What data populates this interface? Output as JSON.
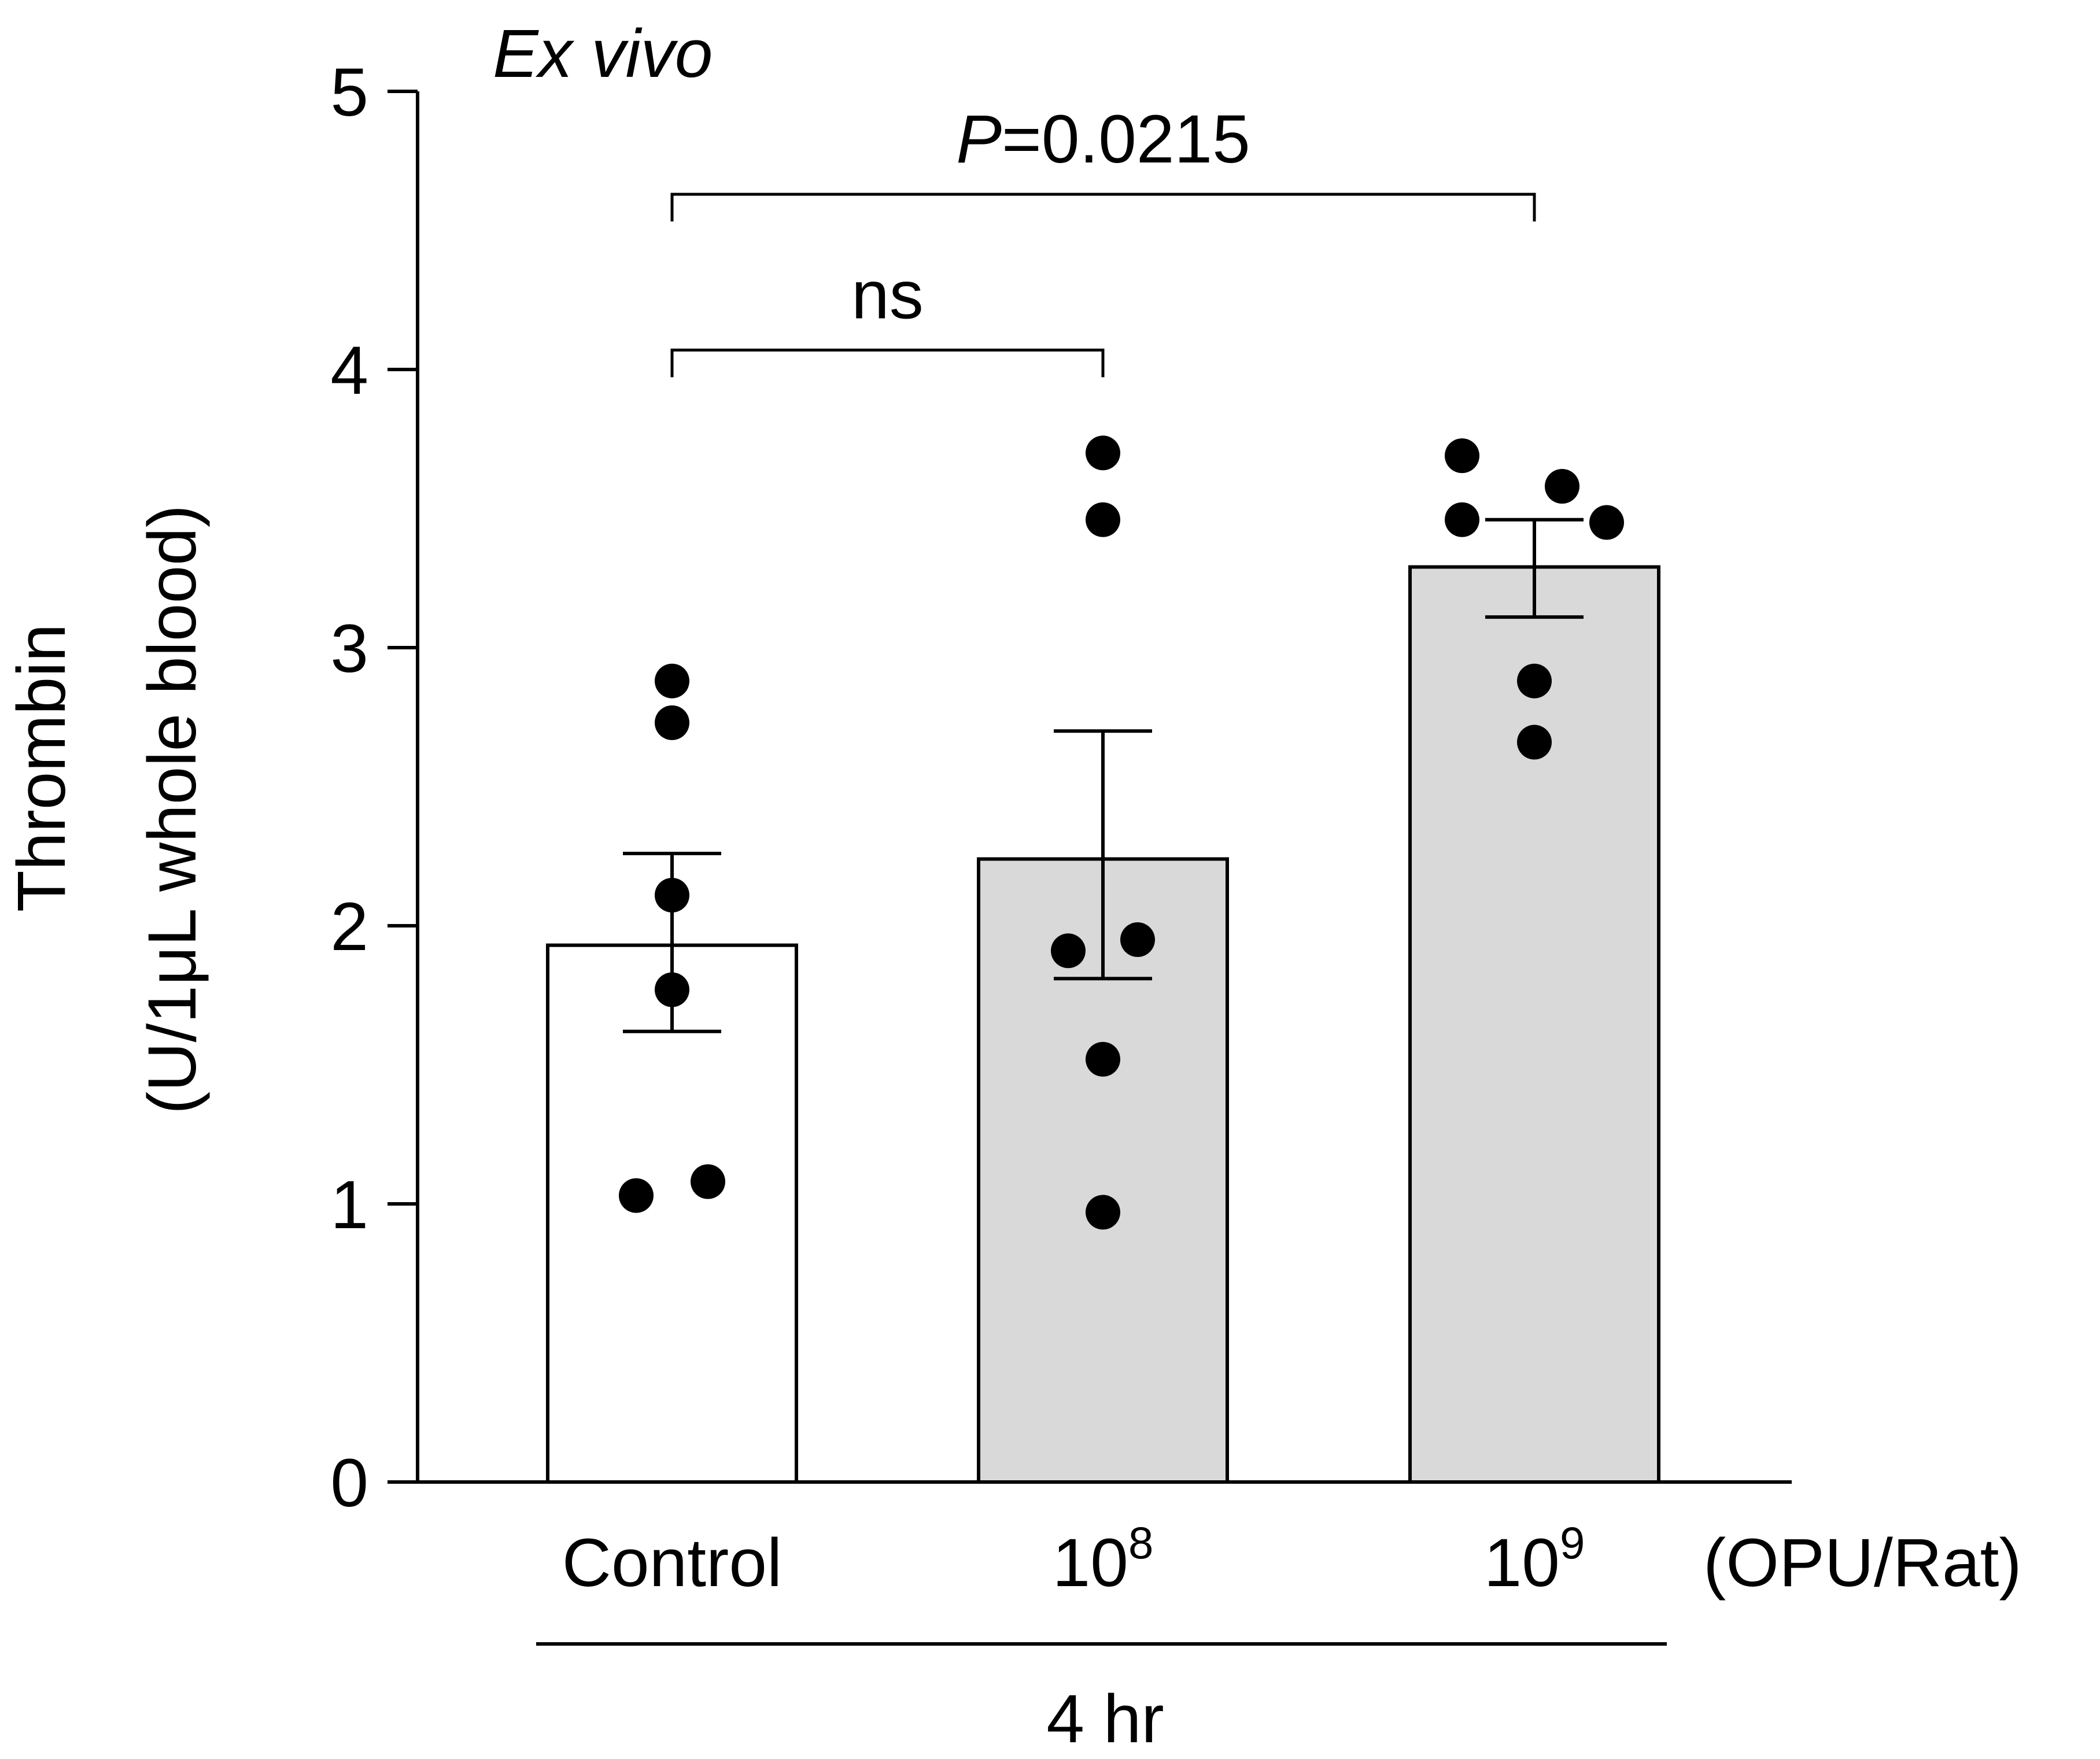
{
  "chart_data": {
    "type": "bar",
    "title": "Ex vivo",
    "ylabel_line1": "Thrombin",
    "ylabel_line2": "(U/1μL whole blood)",
    "ylim": [
      0,
      5
    ],
    "yticks": [
      "0",
      "1",
      "2",
      "3",
      "4",
      "5"
    ],
    "categories": [
      {
        "label": "Control",
        "sup": ""
      },
      {
        "label": "10",
        "sup": "8"
      },
      {
        "label": "10",
        "sup": "9"
      }
    ],
    "unit_label": "(OPU/Rat)",
    "group_label": "4 hr",
    "bar_colors": [
      "#ffffff",
      "#d9d9d9",
      "#d9d9d9"
    ],
    "bars": [
      {
        "mean": 1.93,
        "sem_low": 1.62,
        "sem_high": 2.26,
        "points": [
          2.88,
          2.73,
          2.11,
          1.77,
          1.03,
          1.08
        ]
      },
      {
        "mean": 2.24,
        "sem_low": 1.81,
        "sem_high": 2.7,
        "points": [
          3.7,
          3.46,
          1.95,
          1.91,
          1.52,
          0.97
        ]
      },
      {
        "mean": 3.29,
        "sem_low": 3.11,
        "sem_high": 3.46,
        "points": [
          3.69,
          3.58,
          3.46,
          3.45,
          2.88,
          2.66
        ]
      }
    ],
    "comparisons": [
      {
        "from": 0,
        "to": 1,
        "y": 4.07,
        "label": "ns",
        "italic_prefix": "",
        "suffix": ""
      },
      {
        "from": 0,
        "to": 2,
        "y": 4.63,
        "label": "",
        "italic_prefix": "P",
        "suffix": "=0.0215"
      }
    ]
  }
}
